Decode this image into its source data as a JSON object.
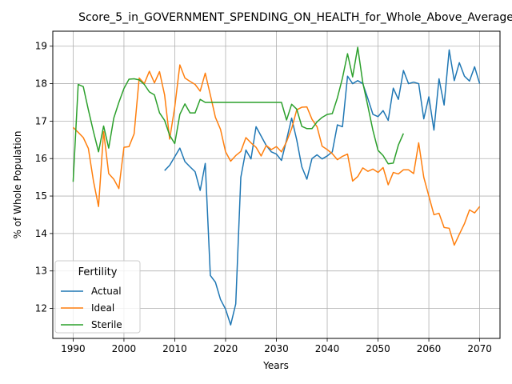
{
  "chart_data": {
    "type": "line",
    "title": "Score_5_in_GOVERNMENT_SPENDING_ON_HEALTH_for_Whole_Above_Average",
    "xlabel": "Years",
    "ylabel": "% of Whole Population",
    "xlim": [
      1986,
      2074
    ],
    "ylim": [
      11.2,
      19.4
    ],
    "xticks": [
      1990,
      2000,
      2010,
      2020,
      2030,
      2040,
      2050,
      2060,
      2070
    ],
    "yticks": [
      12,
      13,
      14,
      15,
      16,
      17,
      18,
      19
    ],
    "grid": true,
    "legend": {
      "title": "Fertility",
      "placement": "lower-left"
    },
    "series": [
      {
        "name": "Actual",
        "color": "#1f77b4",
        "x": [
          2008,
          2009,
          2010,
          2011,
          2012,
          2013,
          2014,
          2015,
          2016,
          2017,
          2018,
          2019,
          2020,
          2021,
          2022,
          2023,
          2024,
          2025,
          2026,
          2027,
          2028,
          2029,
          2030,
          2031,
          2032,
          2033,
          2034,
          2035,
          2036,
          2037,
          2038,
          2039,
          2040,
          2041,
          2042,
          2043,
          2044,
          2045,
          2046,
          2047,
          2048,
          2049,
          2050,
          2051,
          2052,
          2053,
          2054,
          2055,
          2056,
          2057,
          2058,
          2059,
          2060,
          2061,
          2062,
          2063,
          2064,
          2065,
          2066,
          2067,
          2068,
          2069,
          2070
        ],
        "values": [
          15.68,
          15.82,
          16.05,
          16.28,
          15.92,
          15.78,
          15.65,
          15.15,
          15.87,
          12.88,
          12.7,
          12.24,
          11.98,
          11.56,
          12.12,
          15.5,
          16.23,
          15.99,
          16.85,
          16.6,
          16.35,
          16.18,
          16.12,
          15.95,
          16.5,
          17.08,
          16.5,
          15.78,
          15.45,
          16.0,
          16.1,
          15.99,
          16.07,
          16.18,
          16.9,
          16.85,
          18.2,
          18.0,
          18.08,
          18.0,
          17.6,
          17.18,
          17.12,
          17.28,
          17.02,
          17.88,
          17.58,
          18.35,
          18.0,
          18.04,
          18.0,
          17.06,
          17.65,
          16.76,
          18.13,
          17.43,
          18.9,
          18.08,
          18.56,
          18.2,
          18.07,
          18.45,
          18.0
        ]
      },
      {
        "name": "Ideal",
        "color": "#ff7f0e",
        "x": [
          1990,
          1991,
          1992,
          1993,
          1994,
          1995,
          1996,
          1997,
          1998,
          1999,
          2000,
          2001,
          2002,
          2003,
          2004,
          2005,
          2006,
          2007,
          2008,
          2009,
          2010,
          2011,
          2012,
          2013,
          2014,
          2015,
          2016,
          2017,
          2018,
          2019,
          2020,
          2021,
          2022,
          2023,
          2024,
          2025,
          2026,
          2027,
          2028,
          2029,
          2030,
          2031,
          2032,
          2033,
          2034,
          2035,
          2036,
          2037,
          2038,
          2039,
          2040,
          2041,
          2042,
          2043,
          2044,
          2045,
          2046,
          2047,
          2048,
          2049,
          2050,
          2051,
          2052,
          2053,
          2054,
          2055,
          2056,
          2057,
          2058,
          2059,
          2060,
          2061,
          2062,
          2063,
          2064,
          2065,
          2066,
          2067,
          2068,
          2069,
          2070
        ],
        "values": [
          16.83,
          16.7,
          16.56,
          16.27,
          15.4,
          14.72,
          16.72,
          15.6,
          15.45,
          15.2,
          16.3,
          16.32,
          16.66,
          18.15,
          18.0,
          18.33,
          18.02,
          18.32,
          17.7,
          16.52,
          17.38,
          18.5,
          18.15,
          18.06,
          17.98,
          17.8,
          18.28,
          17.7,
          17.1,
          16.78,
          16.18,
          15.93,
          16.08,
          16.19,
          16.56,
          16.42,
          16.3,
          16.07,
          16.35,
          16.24,
          16.32,
          16.18,
          16.45,
          16.8,
          17.3,
          17.37,
          17.38,
          17.05,
          16.85,
          16.33,
          16.24,
          16.13,
          15.97,
          16.06,
          16.12,
          15.4,
          15.52,
          15.75,
          15.66,
          15.72,
          15.63,
          15.76,
          15.3,
          15.63,
          15.59,
          15.7,
          15.7,
          15.6,
          16.42,
          15.5,
          15.0,
          14.5,
          14.54,
          14.16,
          14.14,
          13.69,
          13.98,
          14.26,
          14.63,
          14.55,
          14.72
        ]
      },
      {
        "name": "Sterile",
        "color": "#2ca02c",
        "x": [
          1990,
          1991,
          1992,
          1993,
          1994,
          1995,
          1996,
          1997,
          1998,
          1999,
          2000,
          2001,
          2002,
          2003,
          2004,
          2005,
          2006,
          2007,
          2008,
          2009,
          2010,
          2011,
          2012,
          2013,
          2014,
          2015,
          2016,
          2017,
          2018,
          2019,
          2020,
          2021,
          2022,
          2023,
          2024,
          2025,
          2026,
          2027,
          2028,
          2029,
          2030,
          2031,
          2032,
          2033,
          2034,
          2035,
          2036,
          2037,
          2038,
          2039,
          2040,
          2041,
          2042,
          2043,
          2044,
          2045,
          2046,
          2047,
          2048,
          2049,
          2050,
          2051,
          2052,
          2053,
          2054,
          2055
        ],
        "values": [
          15.38,
          17.98,
          17.92,
          17.3,
          16.72,
          16.18,
          16.87,
          16.28,
          17.08,
          17.5,
          17.87,
          18.12,
          18.13,
          18.1,
          17.98,
          17.78,
          17.7,
          17.22,
          17.02,
          16.62,
          16.4,
          17.18,
          17.46,
          17.22,
          17.22,
          17.58,
          17.5,
          17.5,
          17.5,
          17.5,
          17.5,
          17.5,
          17.5,
          17.5,
          17.5,
          17.5,
          17.5,
          17.5,
          17.5,
          17.5,
          17.5,
          17.5,
          17.03,
          17.45,
          17.32,
          16.86,
          16.8,
          16.8,
          16.98,
          17.1,
          17.18,
          17.2,
          17.62,
          18.15,
          18.8,
          18.18,
          18.97,
          18.03,
          17.4,
          16.75,
          16.22,
          16.08,
          15.86,
          15.88,
          16.36,
          16.67
        ]
      }
    ]
  }
}
